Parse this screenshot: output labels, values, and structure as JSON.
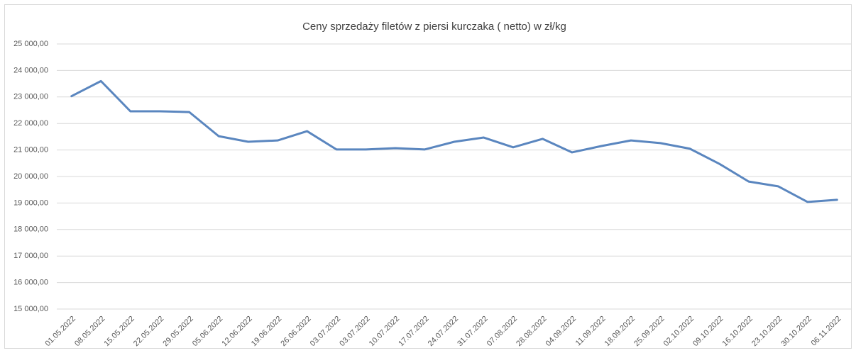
{
  "chart_data": {
    "type": "line",
    "title": "Ceny sprzedaży filetów z piersi kurczaka ( netto) w zł/kg",
    "categories": [
      "01.05.2022",
      "08.05.2022",
      "15.05.2022",
      "22.05.2022",
      "29.05.2022",
      "05.06.2022",
      "12.06.2022",
      "19.06.2022",
      "26.06.2022",
      "03.07.2022",
      "03.07.2022",
      "10.07.2022",
      "17.07.2022",
      "24.07.2022",
      "31.07.2022",
      "07.08.2022",
      "28.08.2022",
      "04.09.2022",
      "11.09.2022",
      "18.09.2022",
      "25.09.2022",
      "02.10.2022",
      "09.10.2022",
      "16.10.2022",
      "23.10.2022",
      "30.10.2022",
      "06.11.2022"
    ],
    "series": [
      {
        "color": "#5a86bf",
        "values": [
          23030,
          23600,
          22460,
          22460,
          22430,
          21520,
          21310,
          21360,
          21710,
          21020,
          21020,
          21070,
          21020,
          21310,
          21470,
          21100,
          21420,
          20910,
          21150,
          21360,
          21260,
          21050,
          20480,
          19810,
          19630,
          19040,
          19120
        ]
      }
    ],
    "ylim": [
      15000,
      25000
    ],
    "yticks": [
      {
        "value": 15000,
        "label": "15 000,00"
      },
      {
        "value": 16000,
        "label": "16 000,00"
      },
      {
        "value": 17000,
        "label": "17 000,00"
      },
      {
        "value": 18000,
        "label": "18 000,00"
      },
      {
        "value": 19000,
        "label": "19 000,00"
      },
      {
        "value": 20000,
        "label": "20 000,00"
      },
      {
        "value": 21000,
        "label": "21 000,00"
      },
      {
        "value": 22000,
        "label": "22 000,00"
      },
      {
        "value": 23000,
        "label": "23 000,00"
      },
      {
        "value": 24000,
        "label": "24 000,00"
      },
      {
        "value": 25000,
        "label": "25 000,00"
      }
    ],
    "grid": true
  }
}
